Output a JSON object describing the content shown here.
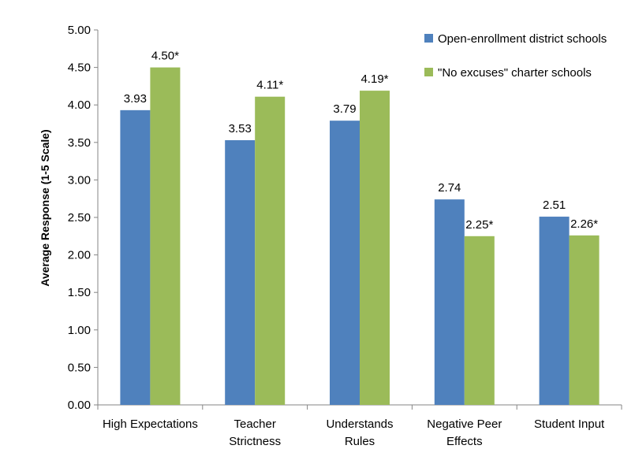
{
  "chart_data": {
    "type": "bar",
    "title": "",
    "xlabel": "",
    "ylabel": "Average Response (1-5 Scale)",
    "ylim": [
      0,
      5
    ],
    "ytick_step": 0.5,
    "ytick_labels": [
      "0.00",
      "0.50",
      "1.00",
      "1.50",
      "2.00",
      "2.50",
      "3.00",
      "3.50",
      "4.00",
      "4.50",
      "5.00"
    ],
    "categories": [
      [
        "High Expectations"
      ],
      [
        "Teacher",
        "Strictness"
      ],
      [
        "Understands",
        "Rules"
      ],
      [
        "Negative Peer",
        "Effects"
      ],
      [
        "Student Input"
      ]
    ],
    "series": [
      {
        "name": "Open-enrollment district schools",
        "color": "#4F81BD",
        "values": [
          3.93,
          3.53,
          3.79,
          2.74,
          2.51
        ],
        "labels": [
          "3.93",
          "3.53",
          "3.79",
          "2.74",
          "2.51"
        ]
      },
      {
        "name": "\"No excuses\" charter schools",
        "color": "#9BBB59",
        "values": [
          4.5,
          4.11,
          4.19,
          2.25,
          2.26
        ],
        "labels": [
          "4.50*",
          "4.11*",
          "4.19*",
          "2.25*",
          "2.26*"
        ]
      }
    ],
    "legend": "top-right",
    "grid": false
  }
}
